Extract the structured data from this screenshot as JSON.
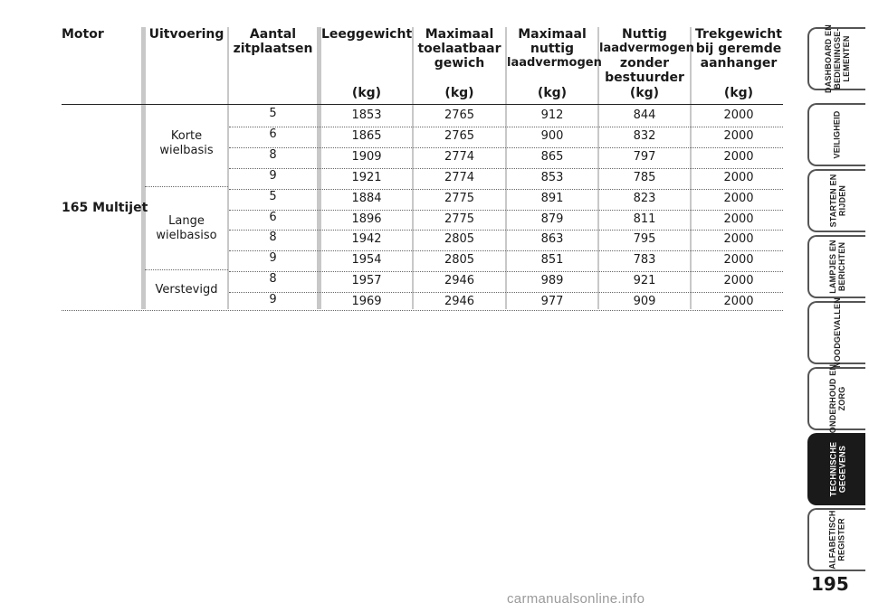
{
  "table": {
    "headers": {
      "motor": "Motor",
      "uitvoering": "Uitvoering",
      "zitplaatsen": [
        "Aantal",
        "zitplaatsen"
      ],
      "leeggewicht": [
        "Leeggewicht"
      ],
      "max_toelaatbaar": [
        "Maximaal",
        "toelaatbaar",
        "gewich"
      ],
      "max_nuttig": [
        "Maximaal",
        "nuttig",
        "laadvermogen"
      ],
      "nuttig_zonder": [
        "Nuttig",
        "laadvermogen",
        "zonder",
        "bestuurder"
      ],
      "trekgewicht": [
        "Trekgewicht",
        "bij geremde",
        "aanhanger"
      ],
      "units": [
        "(kg)",
        "(kg)",
        "(kg)",
        "(kg)",
        "(kg)"
      ]
    },
    "motor": "165 Multijet",
    "variants": [
      {
        "label": [
          "Korte",
          "wielbasis"
        ]
      },
      {
        "label": [
          "Lange",
          "wielbasiso"
        ]
      },
      {
        "label": [
          "Verstevigd"
        ]
      }
    ],
    "rows": [
      [
        "5",
        "1853",
        "2765",
        "912",
        "844",
        "2000"
      ],
      [
        "6",
        "1865",
        "2765",
        "900",
        "832",
        "2000"
      ],
      [
        "8",
        "1909",
        "2774",
        "865",
        "797",
        "2000"
      ],
      [
        "9",
        "1921",
        "2774",
        "853",
        "785",
        "2000"
      ],
      [
        "5",
        "1884",
        "2775",
        "891",
        "823",
        "2000"
      ],
      [
        "6",
        "1896",
        "2775",
        "879",
        "811",
        "2000"
      ],
      [
        "8",
        "1942",
        "2805",
        "863",
        "795",
        "2000"
      ],
      [
        "9",
        "1954",
        "2805",
        "851",
        "783",
        "2000"
      ],
      [
        "8",
        "1957",
        "2946",
        "989",
        "921",
        "2000"
      ],
      [
        "9",
        "1969",
        "2946",
        "977",
        "909",
        "2000"
      ]
    ]
  },
  "sidebar": {
    "tabs": [
      {
        "label": "DASHBOARD EN\nBEDIENINGSE-\nLEMENTEN",
        "active": false
      },
      {
        "label": "VEILIGHEID",
        "active": false
      },
      {
        "label": "STARTEN EN\nRIJDEN",
        "active": false
      },
      {
        "label": "LAMPJES EN\nBERICHTEN",
        "active": false
      },
      {
        "label": "NOODGEVALLEN",
        "active": false
      },
      {
        "label": "ONDERHOUD EN\nZORG",
        "active": false
      },
      {
        "label": "TECHNISCHE\nGEGEVENS",
        "active": true
      },
      {
        "label": "ALFABETISCH\nREGISTER",
        "active": false
      }
    ]
  },
  "page_number": "195",
  "watermark": "carmanualsonline.info"
}
